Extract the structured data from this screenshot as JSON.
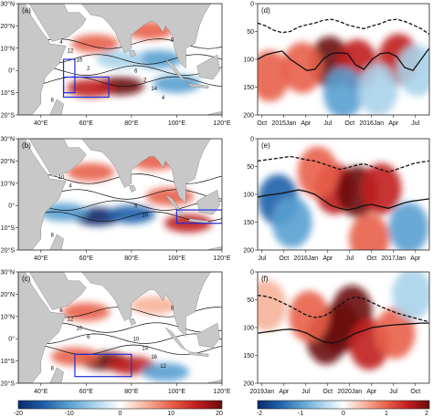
{
  "chart_data": [
    {
      "type": "heatmap",
      "id": "a",
      "panel_label": "(a)",
      "kind": "map",
      "lon_ticks": [
        "40°E",
        "60°E",
        "80°E",
        "100°E",
        "120°E"
      ],
      "lat_ticks": [
        "30°N",
        "20°N",
        "10°N",
        "0°",
        "10°S",
        "20°S"
      ],
      "xlim": [
        30,
        120
      ],
      "ylim": [
        -20,
        30
      ],
      "contour_labels": [
        "8",
        "6",
        "4",
        "2",
        "12",
        "14",
        "16",
        "4",
        "2",
        "6"
      ],
      "boxes": [
        {
          "lon": [
            50,
            55
          ],
          "lat": [
            -10,
            5
          ]
        },
        {
          "lon": [
            50,
            70
          ],
          "lat": [
            -12,
            -3
          ]
        }
      ],
      "anomaly_blobs": [
        {
          "lon": 75,
          "lat": -7,
          "value": 18
        },
        {
          "lon": 62,
          "lat": -8,
          "value": 14
        },
        {
          "lon": 64,
          "lat": 12,
          "value": 12
        },
        {
          "lon": 88,
          "lat": 18,
          "value": 9
        },
        {
          "lon": 92,
          "lat": 5,
          "value": -10
        },
        {
          "lon": 100,
          "lat": -6,
          "value": -12
        },
        {
          "lon": 75,
          "lat": 5,
          "value": -6
        }
      ]
    },
    {
      "type": "heatmap",
      "id": "b",
      "panel_label": "(b)",
      "kind": "map",
      "lon_ticks": [
        "40°E",
        "60°E",
        "80°E",
        "100°E",
        "120°E"
      ],
      "lat_ticks": [
        "30°N",
        "20°N",
        "10°N",
        "0°",
        "10°S",
        "20°S"
      ],
      "xlim": [
        30,
        120
      ],
      "ylim": [
        -20,
        30
      ],
      "contour_labels": [
        "8",
        "6",
        "10",
        "10",
        "4"
      ],
      "boxes": [
        {
          "lon": [
            100,
            120
          ],
          "lat": [
            -8,
            -2
          ]
        }
      ],
      "anomaly_blobs": [
        {
          "lon": 65,
          "lat": -5,
          "value": -18
        },
        {
          "lon": 80,
          "lat": -4,
          "value": -16
        },
        {
          "lon": 50,
          "lat": -3,
          "value": -10
        },
        {
          "lon": 62,
          "lat": 15,
          "value": 10
        },
        {
          "lon": 90,
          "lat": 20,
          "value": 12
        },
        {
          "lon": 105,
          "lat": -8,
          "value": 15
        },
        {
          "lon": 97,
          "lat": 4,
          "value": 8
        }
      ]
    },
    {
      "type": "heatmap",
      "id": "c",
      "panel_label": "(c)",
      "kind": "map",
      "lon_ticks": [
        "40°E",
        "60°E",
        "80°E",
        "100°E",
        "120°E"
      ],
      "lat_ticks": [
        "30°N",
        "20°N",
        "10°N",
        "0°",
        "10°S",
        "20°S"
      ],
      "xlim": [
        30,
        120
      ],
      "ylim": [
        -20,
        30
      ],
      "contour_labels": [
        "8",
        "10",
        "6",
        "14",
        "12",
        "16",
        "10",
        "12",
        "6",
        "8"
      ],
      "boxes": [
        {
          "lon": [
            55,
            80
          ],
          "lat": [
            -17,
            -7
          ]
        }
      ],
      "anomaly_blobs": [
        {
          "lon": 68,
          "lat": -10,
          "value": 19
        },
        {
          "lon": 80,
          "lat": -12,
          "value": 15
        },
        {
          "lon": 55,
          "lat": -8,
          "value": 10
        },
        {
          "lon": 95,
          "lat": -15,
          "value": -10
        },
        {
          "lon": 60,
          "lat": 12,
          "value": 8
        },
        {
          "lon": 90,
          "lat": 15,
          "value": 6
        }
      ]
    },
    {
      "type": "heatmap",
      "id": "d",
      "panel_label": "(d)",
      "kind": "section",
      "x_ticks": [
        "Oct",
        "2015Jan",
        "Apr",
        "Jul",
        "Oct",
        "2016Jan",
        "Apr",
        "Jul"
      ],
      "y_ticks": [
        "0",
        "50",
        "100",
        "150",
        "200"
      ],
      "ylim": [
        200,
        0
      ],
      "dashed_depth": [
        35,
        40,
        48,
        52,
        50,
        42,
        38,
        35,
        30,
        28,
        32,
        38,
        42,
        45,
        40,
        36,
        30,
        28,
        32,
        38,
        45,
        55
      ],
      "solid_depth": [
        100,
        92,
        88,
        85,
        100,
        110,
        120,
        118,
        100,
        90,
        88,
        90,
        110,
        118,
        100,
        90,
        88,
        95,
        115,
        120,
        100,
        80
      ],
      "anomaly_blobs": [
        {
          "t": 0.42,
          "depth": 105,
          "value": 1.8
        },
        {
          "t": 0.58,
          "depth": 110,
          "value": 1.5
        },
        {
          "t": 0.82,
          "depth": 100,
          "value": 1.6
        },
        {
          "t": 0.26,
          "depth": 115,
          "value": 1.2
        },
        {
          "t": 0.07,
          "depth": 130,
          "value": 0.8
        },
        {
          "t": 0.5,
          "depth": 160,
          "value": -0.8
        },
        {
          "t": 0.7,
          "depth": 155,
          "value": -0.6
        },
        {
          "t": 0.93,
          "depth": 120,
          "value": -0.7
        }
      ]
    },
    {
      "type": "heatmap",
      "id": "e",
      "panel_label": "(e)",
      "kind": "section",
      "x_ticks": [
        "Jul",
        "Oct",
        "2016Jan",
        "Apr",
        "Jul",
        "Oct",
        "2017Jan",
        "Apr"
      ],
      "y_ticks": [
        "0",
        "50",
        "100",
        "150",
        "200"
      ],
      "ylim": [
        200,
        0
      ],
      "dashed_depth": [
        40,
        38,
        36,
        34,
        32,
        35,
        38,
        40,
        45,
        50,
        55,
        52,
        48,
        45,
        50,
        55,
        60,
        55,
        50,
        45,
        42,
        40
      ],
      "solid_depth": [
        105,
        102,
        100,
        98,
        95,
        92,
        95,
        100,
        110,
        120,
        125,
        128,
        125,
        120,
        118,
        122,
        125,
        120,
        115,
        112,
        110,
        108
      ],
      "anomaly_blobs": [
        {
          "t": 0.45,
          "depth": 90,
          "value": 1.6
        },
        {
          "t": 0.58,
          "depth": 95,
          "value": 1.9
        },
        {
          "t": 0.72,
          "depth": 90,
          "value": 1.5
        },
        {
          "t": 0.35,
          "depth": 60,
          "value": 1.2
        },
        {
          "t": 0.12,
          "depth": 110,
          "value": -1.5
        },
        {
          "t": 0.2,
          "depth": 150,
          "value": -1.2
        },
        {
          "t": 0.88,
          "depth": 160,
          "value": -1.0
        },
        {
          "t": 0.65,
          "depth": 180,
          "value": 0.8
        }
      ]
    },
    {
      "type": "heatmap",
      "id": "f",
      "panel_label": "(f)",
      "kind": "section",
      "x_ticks": [
        "2019Jan",
        "Apr",
        "Jul",
        "Oct",
        "2020Jan",
        "Apr",
        "Jul",
        "Oct"
      ],
      "y_ticks": [
        "0",
        "50",
        "100",
        "150",
        "200"
      ],
      "ylim": [
        200,
        0
      ],
      "dashed_depth": [
        42,
        44,
        48,
        55,
        62,
        70,
        78,
        82,
        80,
        72,
        60,
        50,
        45,
        48,
        55,
        62,
        68,
        74,
        78,
        82,
        86,
        90
      ],
      "solid_depth": [
        110,
        108,
        106,
        104,
        103,
        105,
        110,
        118,
        125,
        128,
        125,
        118,
        110,
        105,
        100,
        98,
        96,
        95,
        94,
        93,
        92,
        92
      ],
      "anomaly_blobs": [
        {
          "t": 0.48,
          "depth": 100,
          "value": 2.0
        },
        {
          "t": 0.55,
          "depth": 70,
          "value": 2.0
        },
        {
          "t": 0.4,
          "depth": 120,
          "value": 1.8
        },
        {
          "t": 0.65,
          "depth": 130,
          "value": 1.5
        },
        {
          "t": 0.3,
          "depth": 80,
          "value": 1.2
        },
        {
          "t": 0.8,
          "depth": 110,
          "value": 1.0
        },
        {
          "t": 0.05,
          "depth": 60,
          "value": 0.4
        },
        {
          "t": 0.9,
          "depth": 40,
          "value": -0.4
        }
      ]
    }
  ],
  "colorbars": [
    {
      "id": "left",
      "ticks": [
        "-20",
        "-10",
        "0",
        "10",
        "20"
      ],
      "range": [
        -20,
        20
      ]
    },
    {
      "id": "right",
      "ticks": [
        "-2",
        "-1",
        "0",
        "1",
        "2"
      ],
      "range": [
        -2,
        2
      ]
    }
  ],
  "colors": {
    "land": "#c8c8c8",
    "ocean_base": "#ffffff",
    "box": "#1f2fd8",
    "contour": "#111111",
    "cmap": [
      "#0a2a6b",
      "#1f5fa8",
      "#5aa0d0",
      "#a9d3ea",
      "#ffffff",
      "#f6b39a",
      "#e8604a",
      "#c01f1f",
      "#6b0a0a"
    ]
  }
}
